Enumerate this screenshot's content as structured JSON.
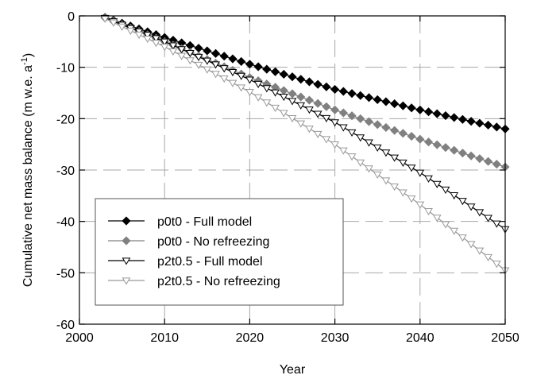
{
  "chart_data": {
    "type": "line",
    "xlabel": "Year",
    "ylabel": "Cumulative net mass balance (m w.e. a",
    "ylabel_sup": "-1",
    "ylabel_suffix": ")",
    "xlim": [
      2000,
      2050
    ],
    "ylim": [
      -60,
      0
    ],
    "xticks": [
      2000,
      2010,
      2020,
      2030,
      2040,
      2050
    ],
    "yticks": [
      0,
      -10,
      -20,
      -30,
      -40,
      -50,
      -60
    ],
    "grid": true,
    "grid_style": "dashed",
    "legend_position": "lower-left",
    "x_range": [
      2003,
      2050
    ],
    "series": [
      {
        "name": "p0t0 - Full model",
        "marker": "diamond",
        "marker_fill": "#000000",
        "line_color": "#000000",
        "x": [
          2003,
          2010,
          2020,
          2030,
          2040,
          2050
        ],
        "y": [
          -0.3,
          -4.2,
          -9.4,
          -14.3,
          -18.3,
          -22.0
        ]
      },
      {
        "name": "p0t0 - No refreezing",
        "marker": "diamond",
        "marker_fill": "#808080",
        "line_color": "#808080",
        "x": [
          2003,
          2010,
          2020,
          2030,
          2040,
          2050
        ],
        "y": [
          -0.4,
          -5.0,
          -12.0,
          -18.3,
          -24.0,
          -29.4
        ]
      },
      {
        "name": "p2t0.5 - Full model",
        "marker": "triangle-down",
        "marker_fill": "#ffffff",
        "line_color": "#000000",
        "x": [
          2003,
          2010,
          2020,
          2030,
          2040,
          2050
        ],
        "y": [
          -0.4,
          -5.0,
          -12.4,
          -20.7,
          -30.5,
          -41.5
        ]
      },
      {
        "name": "p2t0.5 - No refreezing",
        "marker": "triangle-down",
        "marker_fill": "#ffffff",
        "line_color": "#999999",
        "x": [
          2003,
          2010,
          2020,
          2030,
          2040,
          2050
        ],
        "y": [
          -0.5,
          -6.0,
          -14.8,
          -25.0,
          -36.7,
          -49.5
        ]
      }
    ]
  }
}
